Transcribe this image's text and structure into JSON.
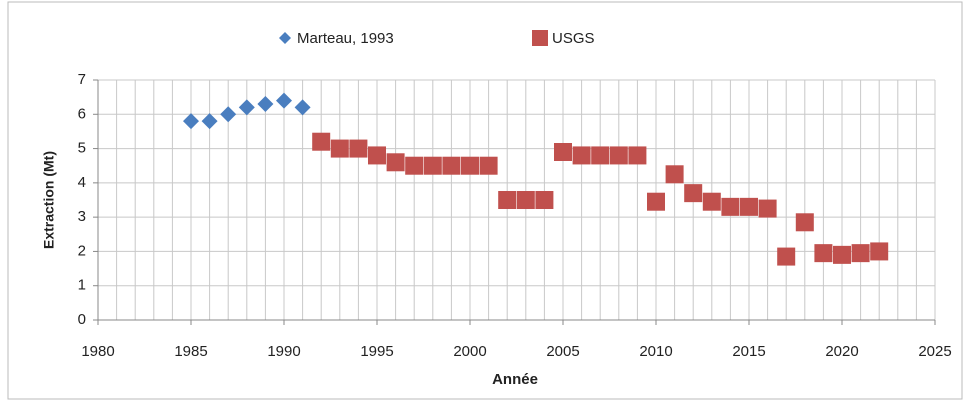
{
  "chart_data": {
    "type": "scatter",
    "xlabel": "Année",
    "ylabel": "Extraction (Mt)",
    "xlim": [
      1980,
      2025
    ],
    "xticks": [
      1980,
      1985,
      1990,
      1995,
      2000,
      2005,
      2010,
      2015,
      2020,
      2025
    ],
    "ylim": [
      0,
      7
    ],
    "yticks": [
      0,
      1,
      2,
      3,
      4,
      5,
      6,
      7
    ],
    "grid": true,
    "x_minor_step": 1,
    "legend": "top",
    "series": [
      {
        "name": "Marteau, 1993",
        "color": "#4a7ebf",
        "marker": "diamond",
        "x": [
          1985,
          1986,
          1987,
          1988,
          1989,
          1990,
          1991
        ],
        "values": [
          5.8,
          5.8,
          6.0,
          6.2,
          6.3,
          6.4,
          6.2
        ]
      },
      {
        "name": "USGS",
        "color": "#c0504d",
        "marker": "square",
        "x": [
          1992,
          1993,
          1994,
          1995,
          1996,
          1997,
          1998,
          1999,
          2000,
          2001,
          2002,
          2003,
          2004,
          2005,
          2006,
          2007,
          2008,
          2009,
          2010,
          2011,
          2012,
          2013,
          2014,
          2015,
          2016,
          2017,
          2018,
          2019,
          2020,
          2021,
          2022
        ],
        "values": [
          5.2,
          5.0,
          5.0,
          4.8,
          4.6,
          4.5,
          4.5,
          4.5,
          4.5,
          4.5,
          3.5,
          3.5,
          3.5,
          4.9,
          4.8,
          4.8,
          4.8,
          4.8,
          3.45,
          4.25,
          3.7,
          3.45,
          3.3,
          3.3,
          3.25,
          1.85,
          2.85,
          1.95,
          1.9,
          1.95,
          2.0
        ]
      }
    ]
  }
}
